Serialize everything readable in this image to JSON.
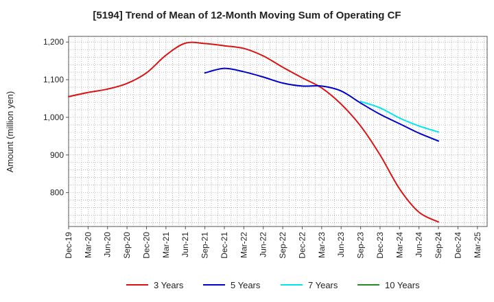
{
  "chart_data": {
    "type": "line",
    "title": "[5194]  Trend of Mean of 12-Month Moving Sum of Operating CF",
    "xlabel": "",
    "ylabel": "Amount (million yen)",
    "ylim": [
      710,
      1215
    ],
    "yticks": [
      800,
      900,
      1000,
      1100,
      1200
    ],
    "ytick_labels": [
      "800",
      "900",
      "1,000",
      "1,100",
      "1,200"
    ],
    "categories": [
      "Dec-19",
      "Mar-20",
      "Jun-20",
      "Sep-20",
      "Dec-20",
      "Mar-21",
      "Jun-21",
      "Sep-21",
      "Dec-21",
      "Mar-22",
      "Jun-22",
      "Sep-22",
      "Dec-22",
      "Mar-23",
      "Jun-23",
      "Sep-23",
      "Dec-23",
      "Mar-24",
      "Jun-24",
      "Sep-24",
      "Dec-24",
      "Mar-25"
    ],
    "grid": true,
    "legend_position": "bottom",
    "series": [
      {
        "name": "3 Years",
        "color": "#dd1111",
        "values": [
          1055,
          1066,
          1075,
          1090,
          1118,
          1165,
          1197,
          1196,
          1190,
          1183,
          1163,
          1133,
          1105,
          1078,
          1035,
          977,
          900,
          810,
          748,
          722,
          null,
          null
        ]
      },
      {
        "name": "5 Years",
        "color": "#0000cc",
        "values": [
          null,
          null,
          null,
          null,
          null,
          null,
          null,
          1118,
          1130,
          1121,
          1107,
          1091,
          1083,
          1083,
          1070,
          1038,
          1008,
          983,
          958,
          937,
          null,
          null
        ]
      },
      {
        "name": "7 Years",
        "color": "#00e5ee",
        "values": [
          null,
          null,
          null,
          null,
          null,
          null,
          null,
          null,
          null,
          null,
          null,
          null,
          null,
          null,
          null,
          1042,
          1025,
          998,
          977,
          961,
          null,
          null
        ]
      },
      {
        "name": "10 Years",
        "color": "#228b22",
        "values": [
          null,
          null,
          null,
          null,
          null,
          null,
          null,
          null,
          null,
          null,
          null,
          null,
          null,
          null,
          null,
          null,
          null,
          null,
          null,
          null,
          null,
          null
        ]
      }
    ]
  }
}
